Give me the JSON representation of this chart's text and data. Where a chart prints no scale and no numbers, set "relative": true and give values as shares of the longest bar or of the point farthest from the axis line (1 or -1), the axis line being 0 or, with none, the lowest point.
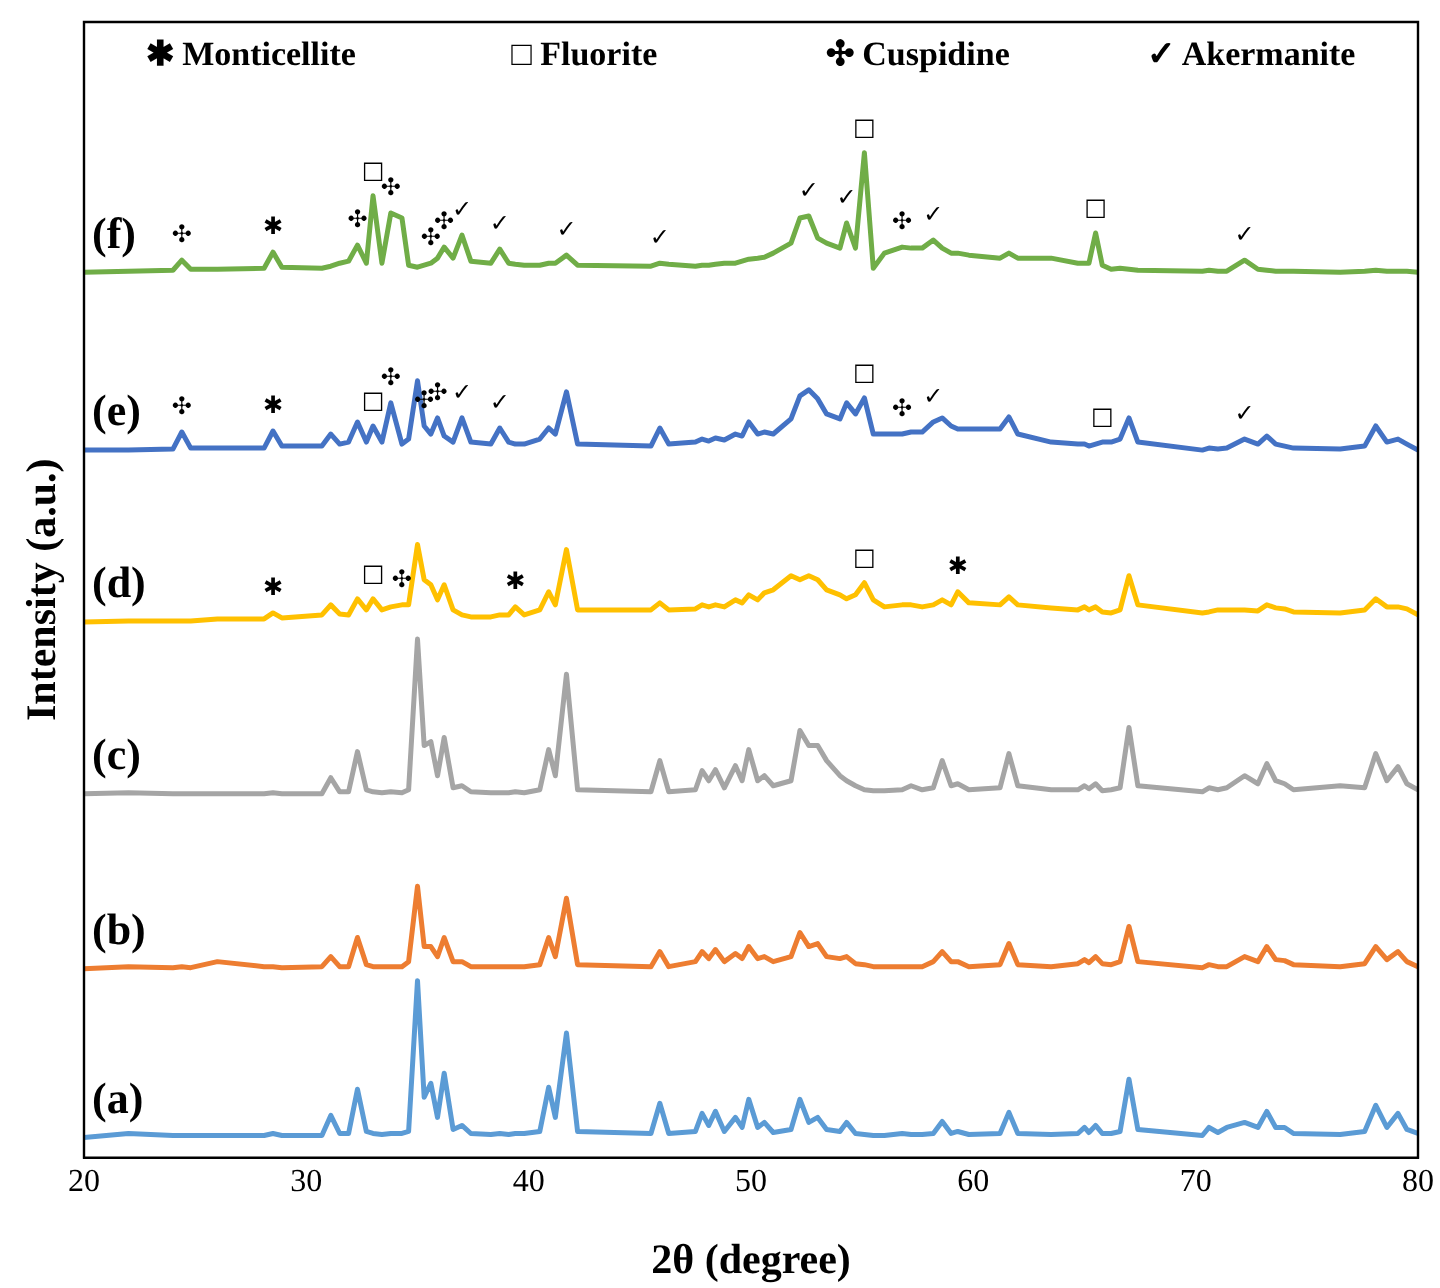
{
  "chart_data": {
    "type": "line",
    "relative": true,
    "xlabel": "2θ (degree)",
    "ylabel": "Intensity (a.u.)",
    "xlim": [
      20,
      80
    ],
    "xticks": [
      20,
      30,
      40,
      50,
      60,
      70,
      80
    ],
    "tick_labels": "x",
    "grid": false,
    "legend": false,
    "marker": "none",
    "line_style": "solid",
    "x": [
      20,
      22,
      24,
      24.4,
      24.8,
      26,
      28.1,
      28.5,
      28.9,
      30.7,
      31.1,
      31.5,
      31.9,
      32.3,
      32.7,
      33.0,
      33.4,
      33.8,
      34.3,
      34.6,
      35.0,
      35.3,
      35.6,
      35.9,
      36.2,
      36.6,
      37.0,
      37.4,
      38.3,
      38.7,
      39.1,
      39.4,
      39.8,
      40.5,
      40.9,
      41.2,
      41.7,
      42.2,
      45.5,
      45.9,
      46.3,
      47.5,
      47.8,
      48.1,
      48.4,
      48.8,
      49.3,
      49.6,
      49.9,
      50.3,
      50.6,
      51.0,
      51.8,
      52.2,
      52.6,
      53.0,
      53.4,
      54.0,
      54.3,
      54.7,
      55.1,
      55.5,
      56.0,
      56.8,
      57.2,
      57.7,
      58.2,
      58.6,
      59.0,
      59.3,
      59.8,
      61.2,
      61.6,
      62.0,
      63.5,
      64.7,
      65.0,
      65.2,
      65.5,
      65.8,
      66.2,
      66.6,
      67.0,
      67.4,
      70.3,
      70.6,
      71.0,
      71.4,
      72.2,
      72.8,
      73.2,
      73.6,
      74.0,
      74.4,
      76.5,
      77.6,
      78.1,
      78.6,
      79.1,
      79.5,
      80
    ],
    "series": [
      {
        "name": "(a)",
        "color": "#5b9bd5",
        "values": [
          0.02,
          0.024,
          0.022,
          0.022,
          0.022,
          0.022,
          0.022,
          0.024,
          0.022,
          0.022,
          0.042,
          0.024,
          0.024,
          0.068,
          0.026,
          0.024,
          0.023,
          0.024,
          0.024,
          0.026,
          0.176,
          0.06,
          0.074,
          0.04,
          0.084,
          0.028,
          0.032,
          0.024,
          0.023,
          0.024,
          0.023,
          0.024,
          0.024,
          0.026,
          0.07,
          0.04,
          0.124,
          0.026,
          0.024,
          0.054,
          0.024,
          0.026,
          0.044,
          0.032,
          0.046,
          0.026,
          0.04,
          0.03,
          0.058,
          0.03,
          0.035,
          0.025,
          0.028,
          0.058,
          0.035,
          0.04,
          0.028,
          0.026,
          0.035,
          0.024,
          0.023,
          0.022,
          0.022,
          0.024,
          0.023,
          0.023,
          0.024,
          0.036,
          0.024,
          0.026,
          0.023,
          0.024,
          0.045,
          0.024,
          0.023,
          0.024,
          0.03,
          0.025,
          0.032,
          0.024,
          0.024,
          0.026,
          0.078,
          0.028,
          0.022,
          0.03,
          0.025,
          0.03,
          0.035,
          0.03,
          0.046,
          0.03,
          0.03,
          0.024,
          0.023,
          0.026,
          0.052,
          0.03,
          0.044,
          0.028,
          0.024
        ]
      },
      {
        "name": "(b)",
        "color": "#ed7d31",
        "values": [
          0.188,
          0.19,
          0.189,
          0.19,
          0.189,
          0.195,
          0.19,
          0.19,
          0.189,
          0.19,
          0.2,
          0.19,
          0.19,
          0.219,
          0.192,
          0.19,
          0.19,
          0.19,
          0.19,
          0.195,
          0.27,
          0.21,
          0.21,
          0.2,
          0.219,
          0.195,
          0.195,
          0.19,
          0.19,
          0.19,
          0.19,
          0.19,
          0.19,
          0.192,
          0.219,
          0.2,
          0.258,
          0.192,
          0.19,
          0.205,
          0.19,
          0.195,
          0.205,
          0.198,
          0.207,
          0.195,
          0.203,
          0.198,
          0.21,
          0.198,
          0.2,
          0.195,
          0.2,
          0.224,
          0.21,
          0.213,
          0.2,
          0.198,
          0.2,
          0.193,
          0.192,
          0.19,
          0.19,
          0.19,
          0.19,
          0.19,
          0.195,
          0.205,
          0.195,
          0.195,
          0.19,
          0.192,
          0.213,
          0.192,
          0.19,
          0.193,
          0.197,
          0.194,
          0.2,
          0.193,
          0.192,
          0.195,
          0.23,
          0.195,
          0.189,
          0.192,
          0.19,
          0.19,
          0.2,
          0.195,
          0.21,
          0.197,
          0.196,
          0.192,
          0.19,
          0.193,
          0.21,
          0.197,
          0.205,
          0.195,
          0.19
        ]
      },
      {
        "name": "(c)",
        "color": "#a5a5a5",
        "values": [
          0.362,
          0.363,
          0.362,
          0.362,
          0.362,
          0.362,
          0.362,
          0.363,
          0.362,
          0.362,
          0.378,
          0.364,
          0.364,
          0.404,
          0.366,
          0.364,
          0.363,
          0.364,
          0.363,
          0.366,
          0.516,
          0.41,
          0.414,
          0.38,
          0.418,
          0.368,
          0.37,
          0.364,
          0.363,
          0.363,
          0.363,
          0.364,
          0.363,
          0.366,
          0.406,
          0.38,
          0.481,
          0.366,
          0.364,
          0.395,
          0.364,
          0.366,
          0.385,
          0.375,
          0.386,
          0.368,
          0.39,
          0.375,
          0.406,
          0.375,
          0.38,
          0.37,
          0.375,
          0.425,
          0.41,
          0.41,
          0.395,
          0.38,
          0.375,
          0.37,
          0.366,
          0.365,
          0.365,
          0.366,
          0.37,
          0.366,
          0.368,
          0.395,
          0.37,
          0.372,
          0.366,
          0.368,
          0.402,
          0.37,
          0.366,
          0.366,
          0.37,
          0.367,
          0.372,
          0.365,
          0.366,
          0.368,
          0.428,
          0.37,
          0.364,
          0.368,
          0.366,
          0.368,
          0.38,
          0.372,
          0.392,
          0.375,
          0.372,
          0.366,
          0.37,
          0.368,
          0.402,
          0.375,
          0.389,
          0.372,
          0.366
        ]
      },
      {
        "name": "(d)",
        "color": "#ffc000",
        "values": [
          0.533,
          0.534,
          0.534,
          0.534,
          0.534,
          0.536,
          0.536,
          0.542,
          0.537,
          0.54,
          0.55,
          0.541,
          0.54,
          0.556,
          0.545,
          0.556,
          0.545,
          0.548,
          0.55,
          0.55,
          0.61,
          0.575,
          0.57,
          0.555,
          0.57,
          0.545,
          0.54,
          0.538,
          0.538,
          0.54,
          0.54,
          0.548,
          0.54,
          0.545,
          0.563,
          0.55,
          0.605,
          0.545,
          0.545,
          0.552,
          0.545,
          0.546,
          0.55,
          0.548,
          0.55,
          0.548,
          0.555,
          0.552,
          0.56,
          0.555,
          0.562,
          0.565,
          0.579,
          0.575,
          0.579,
          0.575,
          0.565,
          0.56,
          0.556,
          0.56,
          0.572,
          0.555,
          0.548,
          0.55,
          0.55,
          0.548,
          0.55,
          0.555,
          0.55,
          0.563,
          0.552,
          0.55,
          0.558,
          0.55,
          0.547,
          0.545,
          0.548,
          0.545,
          0.548,
          0.543,
          0.542,
          0.545,
          0.579,
          0.55,
          0.542,
          0.543,
          0.545,
          0.545,
          0.545,
          0.544,
          0.55,
          0.547,
          0.546,
          0.543,
          0.542,
          0.545,
          0.556,
          0.548,
          0.548,
          0.546,
          0.54
        ]
      },
      {
        "name": "(e)",
        "color": "#4472c4",
        "values": [
          0.704,
          0.704,
          0.705,
          0.722,
          0.706,
          0.706,
          0.706,
          0.723,
          0.708,
          0.708,
          0.72,
          0.71,
          0.712,
          0.732,
          0.712,
          0.728,
          0.712,
          0.751,
          0.71,
          0.715,
          0.773,
          0.728,
          0.72,
          0.736,
          0.718,
          0.712,
          0.736,
          0.712,
          0.71,
          0.726,
          0.712,
          0.71,
          0.71,
          0.715,
          0.726,
          0.72,
          0.762,
          0.71,
          0.708,
          0.726,
          0.71,
          0.712,
          0.715,
          0.713,
          0.716,
          0.714,
          0.72,
          0.718,
          0.732,
          0.72,
          0.722,
          0.72,
          0.735,
          0.758,
          0.764,
          0.755,
          0.74,
          0.735,
          0.751,
          0.74,
          0.756,
          0.72,
          0.72,
          0.72,
          0.722,
          0.722,
          0.732,
          0.736,
          0.728,
          0.725,
          0.725,
          0.725,
          0.737,
          0.72,
          0.712,
          0.71,
          0.71,
          0.708,
          0.71,
          0.712,
          0.712,
          0.715,
          0.736,
          0.712,
          0.704,
          0.706,
          0.705,
          0.706,
          0.715,
          0.71,
          0.718,
          0.71,
          0.708,
          0.706,
          0.705,
          0.708,
          0.728,
          0.712,
          0.715,
          0.71,
          0.704
        ]
      },
      {
        "name": "(f)",
        "color": "#70ad47",
        "values": [
          0.881,
          0.882,
          0.883,
          0.893,
          0.884,
          0.884,
          0.885,
          0.901,
          0.886,
          0.885,
          0.887,
          0.89,
          0.892,
          0.908,
          0.89,
          0.957,
          0.89,
          0.94,
          0.935,
          0.888,
          0.886,
          0.888,
          0.89,
          0.895,
          0.906,
          0.895,
          0.918,
          0.892,
          0.89,
          0.904,
          0.89,
          0.889,
          0.888,
          0.888,
          0.89,
          0.89,
          0.898,
          0.888,
          0.887,
          0.89,
          0.889,
          0.887,
          0.888,
          0.888,
          0.889,
          0.89,
          0.89,
          0.892,
          0.894,
          0.895,
          0.896,
          0.9,
          0.91,
          0.935,
          0.937,
          0.915,
          0.91,
          0.905,
          0.93,
          0.905,
          1,
          0.885,
          0.9,
          0.906,
          0.905,
          0.905,
          0.913,
          0.905,
          0.9,
          0.9,
          0.898,
          0.895,
          0.9,
          0.895,
          0.895,
          0.89,
          0.89,
          0.89,
          0.92,
          0.888,
          0.884,
          0.885,
          0.884,
          0.883,
          0.882,
          0.883,
          0.882,
          0.882,
          0.893,
          0.884,
          0.883,
          0.882,
          0.882,
          0.882,
          0.881,
          0.882,
          0.883,
          0.882,
          0.882,
          0.882,
          0.881
        ]
      }
    ],
    "annotations": [
      "✱ Monticellite",
      "□ Fluorite",
      "✣ Cuspidine",
      "✓ Akermanite",
      {
        "text": "✣",
        "x": 24.4,
        "y": 0.893
      },
      {
        "text": "✱",
        "x": 28.5,
        "y": 0.901
      },
      {
        "text": "✣",
        "x": 32.3,
        "y": 0.908
      },
      {
        "text": "□",
        "x": 33.0,
        "y": 0.957
      },
      {
        "text": "✣",
        "x": 33.8,
        "y": 0.94
      },
      {
        "text": "✣",
        "x": 35.6,
        "y": 0.89
      },
      {
        "text": "✣",
        "x": 36.2,
        "y": 0.906
      },
      {
        "text": "✓",
        "x": 37.0,
        "y": 0.918
      },
      {
        "text": "✓",
        "x": 38.7,
        "y": 0.904
      },
      {
        "text": "✓",
        "x": 41.7,
        "y": 0.898
      },
      {
        "text": "✓",
        "x": 45.9,
        "y": 0.89
      },
      {
        "text": "✓",
        "x": 52.6,
        "y": 0.937
      },
      {
        "text": "✓",
        "x": 54.3,
        "y": 0.93
      },
      {
        "text": "□",
        "x": 55.1,
        "y": 1
      },
      {
        "text": "✣",
        "x": 56.8,
        "y": 0.906
      },
      {
        "text": "✓",
        "x": 58.2,
        "y": 0.913
      },
      {
        "text": "□",
        "x": 65.5,
        "y": 0.92
      },
      {
        "text": "✓",
        "x": 72.2,
        "y": 0.893
      },
      {
        "text": "✣",
        "x": 24.4,
        "y": 0.722
      },
      {
        "text": "✱",
        "x": 28.5,
        "y": 0.723
      },
      {
        "text": "□",
        "x": 33.0,
        "y": 0.728
      },
      {
        "text": "✣",
        "x": 33.8,
        "y": 0.751
      },
      {
        "text": "✣",
        "x": 35.3,
        "y": 0.728
      },
      {
        "text": "✣",
        "x": 35.9,
        "y": 0.736
      },
      {
        "text": "✓",
        "x": 37.0,
        "y": 0.736
      },
      {
        "text": "✓",
        "x": 38.7,
        "y": 0.726
      },
      {
        "text": "□",
        "x": 55.1,
        "y": 0.756
      },
      {
        "text": "✣",
        "x": 56.8,
        "y": 0.72
      },
      {
        "text": "✓",
        "x": 58.2,
        "y": 0.732
      },
      {
        "text": "□",
        "x": 65.8,
        "y": 0.712
      },
      {
        "text": "✓",
        "x": 72.2,
        "y": 0.715
      },
      {
        "text": "✱",
        "x": 28.5,
        "y": 0.542
      },
      {
        "text": "□",
        "x": 33.0,
        "y": 0.556
      },
      {
        "text": "✣",
        "x": 34.3,
        "y": 0.55
      },
      {
        "text": "✱",
        "x": 39.4,
        "y": 0.548
      },
      {
        "text": "□",
        "x": 55.1,
        "y": 0.572
      },
      {
        "text": "✱",
        "x": 59.3,
        "y": 0.563
      }
    ]
  }
}
